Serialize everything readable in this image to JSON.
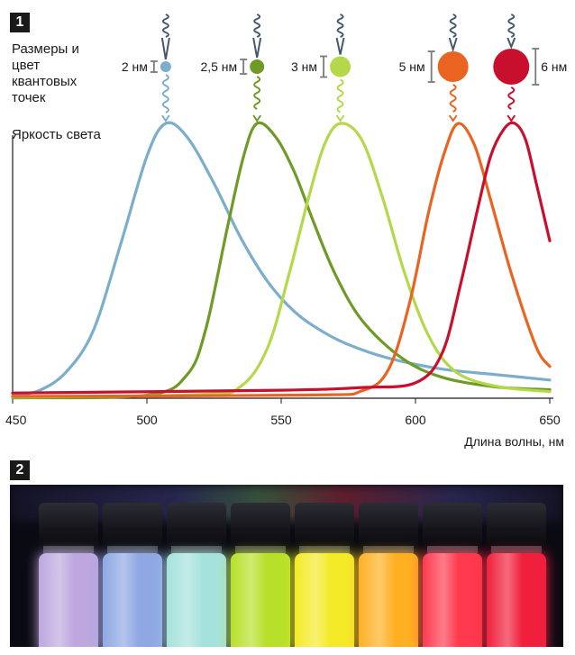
{
  "figure1": {
    "badge": "1",
    "dots_label": "Размеры и цвет квантовых точек",
    "ylabel": "Яркость света",
    "xlabel": "Длина волны, нм"
  },
  "figure2": {
    "badge": "2",
    "vial_colors": [
      "#bda7de",
      "#8fa8e4",
      "#a6e2dc",
      "#b8e02a",
      "#f4ea28",
      "#ffb022",
      "#ff3a4e",
      "#f0203c"
    ]
  },
  "chart_data": {
    "type": "line",
    "xlabel": "Длина волны, нм",
    "ylabel": "Яркость света",
    "xlim": [
      450,
      650
    ],
    "ylim": [
      0,
      1
    ],
    "xticks": [
      450,
      500,
      550,
      600,
      650
    ],
    "grid": false,
    "series": [
      {
        "color": "#7aaecb",
        "dot_size": "2 нм",
        "peak": 507,
        "x": [
          450,
          460,
          470,
          480,
          490,
          500,
          507,
          515,
          525,
          535,
          545,
          555,
          565,
          575,
          590,
          610,
          630,
          650
        ],
        "y": [
          0.01,
          0.03,
          0.09,
          0.24,
          0.55,
          0.88,
          1.0,
          0.95,
          0.78,
          0.58,
          0.42,
          0.31,
          0.24,
          0.19,
          0.14,
          0.1,
          0.08,
          0.06
        ]
      },
      {
        "color": "#6f9a26",
        "dot_size": "2,5 нм",
        "peak": 541,
        "x": [
          450,
          500,
          515,
          522,
          530,
          536,
          541,
          548,
          555,
          562,
          570,
          580,
          595,
          610,
          630,
          650
        ],
        "y": [
          0.0,
          0.01,
          0.08,
          0.25,
          0.62,
          0.88,
          1.0,
          0.95,
          0.82,
          0.64,
          0.45,
          0.28,
          0.14,
          0.07,
          0.04,
          0.03
        ]
      },
      {
        "color": "#b5d84b",
        "dot_size": "3 нм",
        "peak": 572,
        "x": [
          450,
          520,
          535,
          545,
          553,
          560,
          566,
          572,
          580,
          588,
          596,
          605,
          615,
          630,
          650
        ],
        "y": [
          0.0,
          0.01,
          0.04,
          0.18,
          0.45,
          0.72,
          0.92,
          1.0,
          0.94,
          0.72,
          0.45,
          0.22,
          0.09,
          0.04,
          0.02
        ]
      },
      {
        "color": "#ea6421",
        "dot_size": "5 нм",
        "peak": 616,
        "x": [
          450,
          560,
          580,
          590,
          598,
          605,
          611,
          616,
          622,
          628,
          636,
          645,
          650
        ],
        "y": [
          0.0,
          0.005,
          0.02,
          0.1,
          0.35,
          0.68,
          0.9,
          1.0,
          0.92,
          0.72,
          0.44,
          0.18,
          0.11
        ]
      },
      {
        "color": "#c8102e",
        "dot_size": "6 нм",
        "peak": 637,
        "x": [
          450,
          550,
          580,
          600,
          610,
          617,
          623,
          628,
          633,
          637,
          641,
          645,
          650
        ],
        "y": [
          0.01,
          0.02,
          0.03,
          0.05,
          0.16,
          0.42,
          0.68,
          0.88,
          0.98,
          1.0,
          0.94,
          0.78,
          0.57
        ]
      }
    ]
  }
}
